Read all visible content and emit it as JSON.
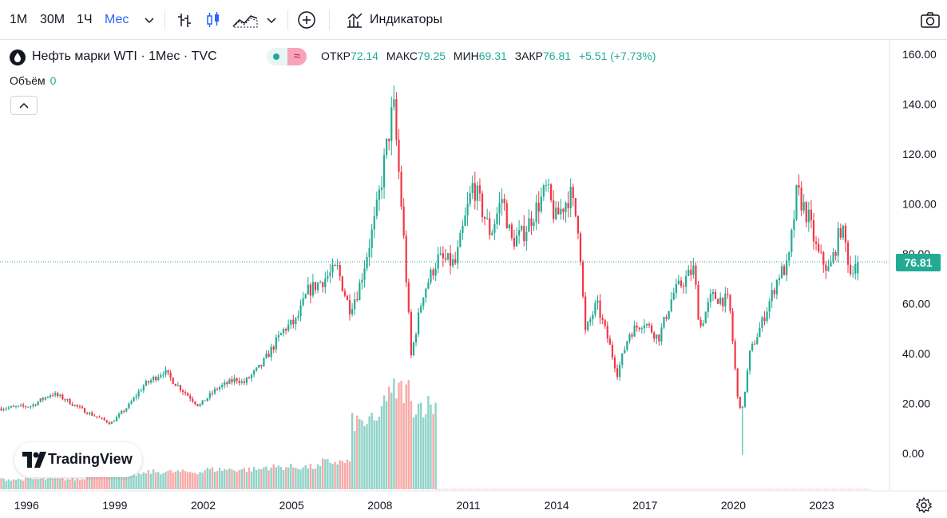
{
  "toolbar": {
    "intervals": [
      "1М",
      "30М",
      "1Ч",
      "Мес"
    ],
    "active_interval": "Мес",
    "indicators_label": "Индикаторы"
  },
  "legend": {
    "symbol_title": "Нефть марки WTI · 1Мес · TVC",
    "open_label": "ОТКР",
    "open_value": "72.14",
    "high_label": "МАКС",
    "high_value": "79.25",
    "low_label": "МИН",
    "low_value": "69.31",
    "close_label": "ЗАКР",
    "close_value": "76.81",
    "change": "+5.51 (+7.73%)",
    "volume_label": "Объём",
    "volume_value": "0"
  },
  "logo_text": "TradingView",
  "colors": {
    "up": "#22ab94",
    "down": "#f23645",
    "vol_up": "#8fd3c8",
    "vol_down": "#f7a9a7",
    "accent": "#2962ff"
  },
  "chart_data": {
    "type": "candlestick",
    "title": "Нефть марки WTI · 1Мес · TVC",
    "price_axis": {
      "ticks": [
        0,
        20,
        40,
        60,
        80,
        100,
        120,
        140,
        160
      ],
      "tick_labels": [
        "0.00",
        "20.00",
        "40.00",
        "60.00",
        "80.00",
        "100.00",
        "120.00",
        "140.00",
        "160.00"
      ],
      "range": [
        -14,
        160
      ]
    },
    "time_axis": {
      "ticks": [
        1996,
        1999,
        2002,
        2005,
        2008,
        2011,
        2014,
        2017,
        2020,
        2023
      ],
      "tick_labels": [
        "1996",
        "1999",
        "2002",
        "2005",
        "2008",
        "2011",
        "2014",
        "2017",
        "2020",
        "2023"
      ],
      "range": [
        1995.1,
        2024.65
      ]
    },
    "last_price": 76.81,
    "last_price_label": "76.81",
    "anchors": [
      [
        1995.1,
        18
      ],
      [
        1996.2,
        19
      ],
      [
        1996.9,
        24
      ],
      [
        1997.3,
        22
      ],
      [
        1998.0,
        17
      ],
      [
        1998.9,
        12
      ],
      [
        1999.5,
        19
      ],
      [
        2000.0,
        27
      ],
      [
        2000.7,
        33
      ],
      [
        2001.1,
        28
      ],
      [
        2001.9,
        19
      ],
      [
        2002.5,
        26
      ],
      [
        2003.2,
        30
      ],
      [
        2003.4,
        28
      ],
      [
        2004.0,
        35
      ],
      [
        2004.8,
        50
      ],
      [
        2005.2,
        53
      ],
      [
        2005.6,
        65
      ],
      [
        2006.6,
        74
      ],
      [
        2007.0,
        58
      ],
      [
        2007.3,
        65
      ],
      [
        2007.9,
        95
      ],
      [
        2008.5,
        140
      ],
      [
        2008.8,
        95
      ],
      [
        2009.1,
        39
      ],
      [
        2009.5,
        64
      ],
      [
        2010.0,
        78
      ],
      [
        2010.6,
        76
      ],
      [
        2011.2,
        108
      ],
      [
        2011.8,
        88
      ],
      [
        2012.2,
        103
      ],
      [
        2012.5,
        85
      ],
      [
        2012.9,
        88
      ],
      [
        2013.7,
        106
      ],
      [
        2014.0,
        94
      ],
      [
        2014.5,
        104
      ],
      [
        2014.8,
        90
      ],
      [
        2015.0,
        48
      ],
      [
        2015.4,
        60
      ],
      [
        2015.8,
        45
      ],
      [
        2016.1,
        32
      ],
      [
        2016.5,
        48
      ],
      [
        2017.0,
        53
      ],
      [
        2017.5,
        46
      ],
      [
        2018.0,
        64
      ],
      [
        2018.7,
        74
      ],
      [
        2018.9,
        50
      ],
      [
        2019.3,
        63
      ],
      [
        2019.9,
        61
      ],
      [
        2020.2,
        20
      ],
      [
        2020.35,
        18
      ],
      [
        2020.6,
        40
      ],
      [
        2021.0,
        52
      ],
      [
        2021.6,
        72
      ],
      [
        2021.9,
        75
      ],
      [
        2022.2,
        105
      ],
      [
        2022.6,
        94
      ],
      [
        2022.9,
        80
      ],
      [
        2023.3,
        73
      ],
      [
        2023.7,
        91
      ],
      [
        2023.9,
        81
      ],
      [
        2024.0,
        72
      ],
      [
        2024.15,
        76.81
      ]
    ],
    "candle_interval": "1 month",
    "volume": {
      "shown_until": 2009.9,
      "tiers": [
        [
          1995.0,
          4
        ],
        [
          1998.0,
          6
        ],
        [
          2000.0,
          7
        ],
        [
          2002.0,
          8
        ],
        [
          2004.0,
          9
        ],
        [
          2006.0,
          11
        ],
        [
          2007.0,
          27
        ],
        [
          2008.0,
          37
        ],
        [
          2008.4,
          40
        ],
        [
          2009.0,
          34
        ]
      ],
      "unit": "relative"
    }
  }
}
